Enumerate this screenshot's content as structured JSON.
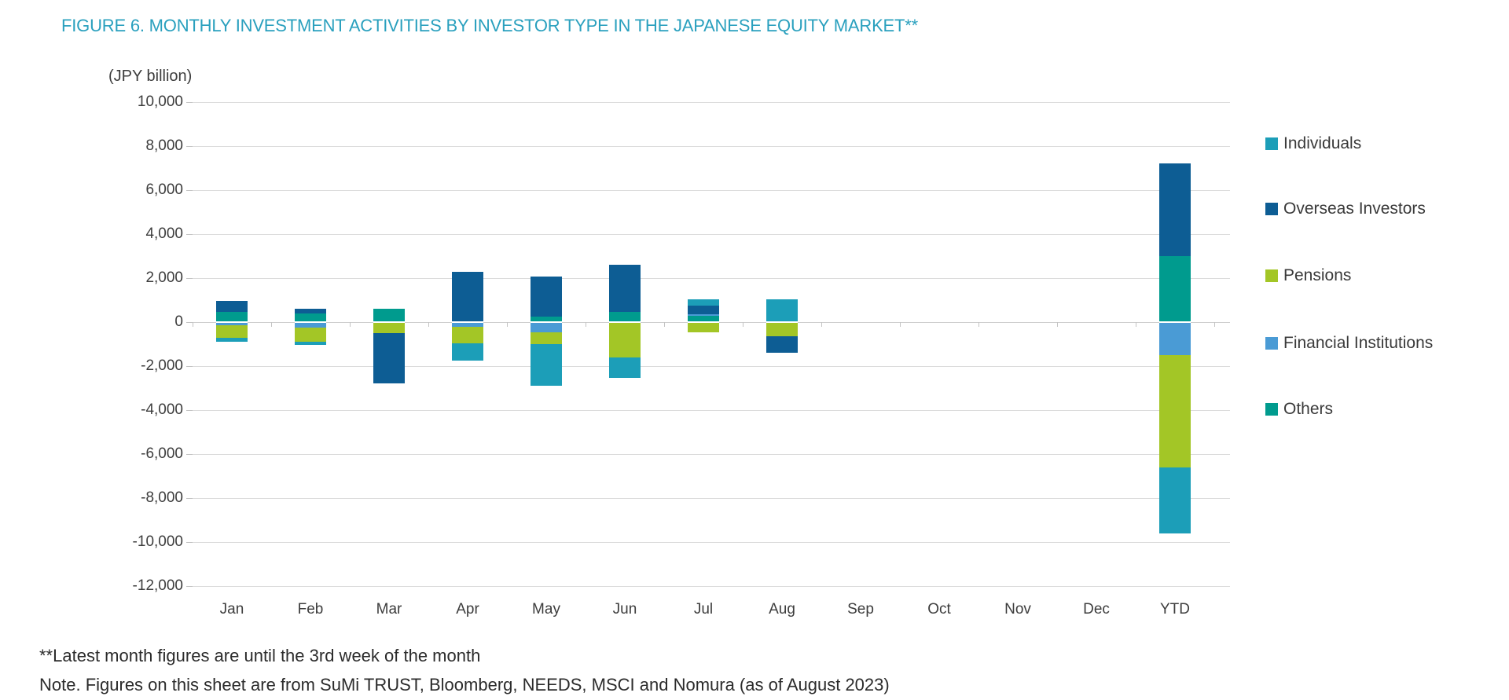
{
  "title": "FIGURE 6. MONTHLY INVESTMENT ACTIVITIES BY INVESTOR TYPE IN THE JAPANESE EQUITY MARKET**",
  "axis_unit": "(JPY billion)",
  "footnotes": {
    "line1": "**Latest month figures are until the 3rd week of the month",
    "line2": "Note. Figures on this sheet are from SuMi TRUST, Bloomberg, NEEDS, MSCI and Nomura (as of August 2023)"
  },
  "colors": {
    "title_text": "#2AA0BE",
    "axis_text": "#3d3d3d",
    "footnote_text": "#2b2b2b",
    "legend_text": "#3a3a3a",
    "gridline": "#dcdcdc",
    "zero_line": "#cfcfcf",
    "tick": "#c4c4c4"
  },
  "chart_data": {
    "type": "bar",
    "stacked": true,
    "title": "FIGURE 6. MONTHLY INVESTMENT ACTIVITIES BY INVESTOR TYPE IN THE JAPANESE EQUITY MARKET**",
    "ylabel": "(JPY billion)",
    "xlabel": "",
    "ylim": [
      -12000,
      10000
    ],
    "y_tick_step": 2000,
    "y_ticks": [
      "10,000",
      "8,000",
      "6,000",
      "4,000",
      "2,000",
      "0",
      "-2,000",
      "-4,000",
      "-6,000",
      "-8,000",
      "-10,000",
      "-12,000"
    ],
    "grid": true,
    "legend_position": "right",
    "categories": [
      "Jan",
      "Feb",
      "Mar",
      "Apr",
      "May",
      "Jun",
      "Jul",
      "Aug",
      "Sep",
      "Oct",
      "Nov",
      "Dec",
      "YTD"
    ],
    "stack_order": [
      "Others",
      "Financial Institutions",
      "Pensions",
      "Overseas Investors",
      "Individuals"
    ],
    "series": [
      {
        "name": "Individuals",
        "color": "#1C9EB8",
        "values": [
          -180,
          -120,
          0,
          -800,
          -1900,
          -950,
          300,
          1050,
          0,
          0,
          0,
          0,
          -3000
        ]
      },
      {
        "name": "Overseas Investors",
        "color": "#0D5D94",
        "values": [
          500,
          200,
          -2270,
          2300,
          1820,
          2150,
          400,
          -750,
          0,
          0,
          0,
          0,
          4200
        ]
      },
      {
        "name": "Pensions",
        "color": "#A3C626",
        "values": [
          -550,
          -650,
          -500,
          -750,
          -550,
          -1600,
          -450,
          -650,
          0,
          0,
          0,
          0,
          -5100
        ]
      },
      {
        "name": "Financial Institutions",
        "color": "#4A9BD5",
        "values": [
          -150,
          -250,
          0,
          -200,
          -450,
          0,
          50,
          0,
          0,
          0,
          0,
          0,
          -1500
        ]
      },
      {
        "name": "Others",
        "color": "#009B8E",
        "values": [
          450,
          400,
          600,
          0,
          250,
          450,
          300,
          0,
          0,
          0,
          0,
          0,
          3000
        ]
      }
    ]
  }
}
